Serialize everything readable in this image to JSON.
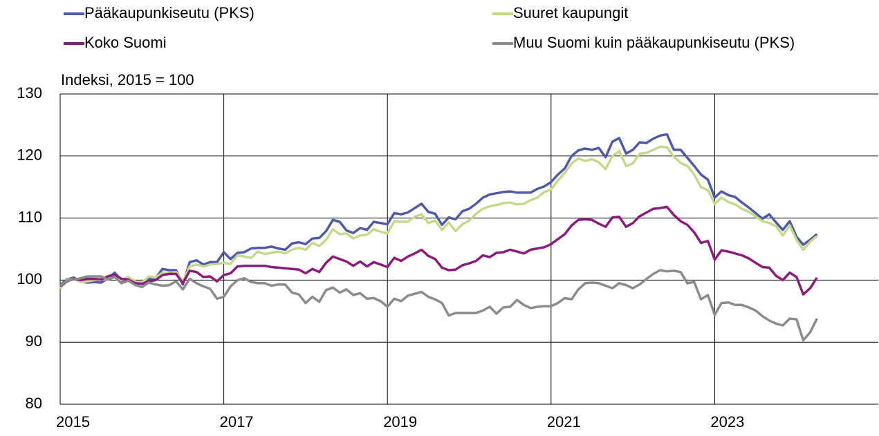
{
  "chart_data": {
    "type": "line",
    "y_label": "Indeksi, 2015 = 100",
    "x": [
      2015,
      2015.083,
      2015.167,
      2015.25,
      2015.333,
      2015.417,
      2015.5,
      2015.583,
      2015.667,
      2015.75,
      2015.833,
      2015.917,
      2016,
      2016.083,
      2016.167,
      2016.25,
      2016.333,
      2016.417,
      2016.5,
      2016.583,
      2016.667,
      2016.75,
      2016.833,
      2016.917,
      2017,
      2017.083,
      2017.167,
      2017.25,
      2017.333,
      2017.417,
      2017.5,
      2017.583,
      2017.667,
      2017.75,
      2017.833,
      2017.917,
      2018,
      2018.083,
      2018.167,
      2018.25,
      2018.333,
      2018.417,
      2018.5,
      2018.583,
      2018.667,
      2018.75,
      2018.833,
      2018.917,
      2019,
      2019.083,
      2019.167,
      2019.25,
      2019.333,
      2019.417,
      2019.5,
      2019.583,
      2019.667,
      2019.75,
      2019.833,
      2019.917,
      2020,
      2020.083,
      2020.167,
      2020.25,
      2020.333,
      2020.417,
      2020.5,
      2020.583,
      2020.667,
      2020.75,
      2020.833,
      2020.917,
      2021,
      2021.083,
      2021.167,
      2021.25,
      2021.333,
      2021.417,
      2021.5,
      2021.583,
      2021.667,
      2021.75,
      2021.833,
      2021.917,
      2022,
      2022.083,
      2022.167,
      2022.25,
      2022.333,
      2022.417,
      2022.5,
      2022.583,
      2022.667,
      2022.75,
      2022.833,
      2022.917,
      2023,
      2023.083,
      2023.167,
      2023.25,
      2023.333,
      2023.417,
      2023.5,
      2023.583,
      2023.667,
      2023.75,
      2023.833,
      2023.917,
      2024,
      2024.083,
      2024.167,
      2024.25
    ],
    "series": [
      {
        "name": "Pääkaupunkiseutu (PKS)",
        "color": "#4f5aa8",
        "values": [
          99.2,
          100.1,
          100.4,
          99.8,
          99.6,
          99.7,
          99.6,
          100.3,
          101.2,
          99.9,
          100.4,
          99.6,
          99.4,
          100.2,
          100.3,
          101.8,
          101.6,
          101.6,
          99.3,
          102.9,
          103.2,
          102.5,
          102.9,
          102.9,
          104.5,
          103.4,
          104.4,
          104.5,
          105.1,
          105.2,
          105.2,
          105.4,
          105.1,
          104.9,
          105.9,
          106.1,
          105.8,
          106.7,
          106.8,
          107.9,
          109.7,
          109.4,
          108.0,
          107.6,
          108.4,
          108.1,
          109.4,
          109.2,
          109.0,
          110.8,
          110.6,
          110.9,
          111.6,
          112.3,
          111.0,
          110.7,
          108.9,
          110.1,
          109.8,
          111.1,
          111.5,
          112.3,
          113.3,
          113.8,
          114.0,
          114.2,
          114.3,
          114.1,
          114.1,
          114.1,
          114.7,
          115.1,
          115.8,
          117.0,
          118.0,
          120.0,
          120.9,
          121.2,
          121.0,
          121.3,
          119.8,
          122.3,
          122.9,
          120.4,
          121.0,
          122.2,
          122.1,
          122.8,
          123.3,
          123.5,
          121.0,
          121.0,
          119.7,
          118.4,
          117.0,
          116.2,
          113.3,
          114.3,
          113.7,
          113.4,
          112.5,
          111.7,
          110.8,
          109.9,
          110.6,
          109.3,
          108.1,
          109.5,
          107.0,
          105.7,
          106.5,
          107.4
        ]
      },
      {
        "name": "Suuret kaupungit",
        "color": "#c5d98a",
        "values": [
          98.6,
          100.0,
          100.2,
          99.7,
          99.8,
          100.0,
          100.1,
          100.2,
          100.9,
          100.0,
          100.5,
          99.8,
          99.6,
          100.6,
          100.4,
          101.2,
          101.2,
          101.3,
          99.8,
          102.2,
          102.5,
          102.2,
          102.5,
          102.6,
          102.8,
          102.6,
          104.0,
          103.8,
          103.6,
          104.6,
          104.2,
          104.4,
          104.6,
          104.3,
          104.9,
          105.2,
          104.9,
          106.0,
          105.5,
          106.5,
          108.2,
          107.4,
          107.5,
          106.7,
          107.2,
          107.3,
          108.2,
          107.8,
          107.5,
          109.5,
          109.4,
          109.4,
          110.2,
          110.6,
          109.2,
          109.6,
          108.1,
          109.3,
          107.9,
          109.0,
          109.6,
          110.7,
          111.5,
          111.9,
          112.1,
          112.4,
          112.5,
          112.2,
          112.3,
          112.9,
          113.3,
          114.2,
          114.6,
          116.0,
          117.3,
          118.8,
          119.6,
          119.2,
          119.5,
          119.0,
          117.9,
          120.0,
          120.8,
          118.4,
          118.8,
          120.4,
          120.5,
          121.0,
          121.5,
          121.4,
          119.9,
          118.9,
          118.4,
          117.0,
          115.0,
          114.5,
          112.3,
          113.3,
          112.6,
          112.2,
          111.5,
          111.0,
          110.3,
          109.5,
          109.2,
          108.7,
          107.2,
          108.8,
          106.5,
          104.9,
          106.2,
          107.1
        ]
      },
      {
        "name": "Koko Suomi",
        "color": "#8b1c7d",
        "values": [
          99.0,
          99.8,
          100.2,
          100.0,
          100.2,
          100.2,
          100.1,
          100.6,
          100.9,
          100.2,
          100.1,
          99.5,
          99.4,
          99.8,
          100.0,
          100.8,
          101.0,
          101.0,
          99.5,
          101.5,
          101.3,
          100.5,
          100.6,
          99.8,
          100.8,
          101.1,
          102.2,
          102.3,
          102.3,
          102.3,
          102.3,
          102.1,
          102.0,
          101.9,
          101.8,
          101.7,
          101.1,
          101.8,
          101.3,
          102.8,
          103.8,
          103.4,
          103.0,
          102.3,
          103.0,
          102.2,
          102.9,
          102.5,
          102.1,
          103.6,
          103.1,
          103.8,
          104.3,
          104.9,
          103.9,
          103.4,
          102.0,
          101.6,
          101.7,
          102.4,
          102.7,
          103.1,
          104.0,
          103.7,
          104.4,
          104.5,
          104.9,
          104.6,
          104.3,
          104.9,
          105.1,
          105.3,
          105.8,
          106.6,
          107.4,
          108.8,
          109.7,
          109.8,
          109.7,
          109.1,
          108.6,
          110.1,
          110.2,
          108.6,
          109.2,
          110.3,
          110.9,
          111.5,
          111.6,
          111.8,
          110.5,
          109.5,
          108.9,
          107.7,
          106.0,
          106.3,
          103.3,
          104.8,
          104.6,
          104.3,
          104.0,
          103.5,
          102.8,
          102.1,
          102.0,
          100.7,
          100.0,
          101.2,
          100.5,
          97.7,
          98.7,
          100.4
        ]
      },
      {
        "name": "Muu Suomi kuin pääkaupunkiseutu (PKS)",
        "color": "#8c8c8c",
        "values": [
          99.1,
          99.9,
          100.1,
          100.3,
          100.6,
          100.6,
          100.6,
          100.1,
          100.5,
          99.5,
          99.9,
          99.2,
          98.9,
          99.6,
          99.3,
          99.1,
          99.2,
          99.8,
          98.5,
          100.2,
          99.5,
          99.0,
          98.6,
          97.0,
          97.3,
          99.0,
          100.0,
          100.3,
          99.7,
          99.5,
          99.5,
          99.1,
          99.3,
          99.3,
          98.0,
          97.7,
          96.3,
          97.3,
          96.5,
          98.4,
          98.8,
          98.0,
          98.5,
          97.6,
          97.9,
          97.0,
          97.1,
          96.6,
          95.7,
          97.0,
          96.6,
          97.5,
          97.8,
          98.1,
          97.3,
          96.9,
          96.3,
          94.3,
          94.7,
          94.7,
          94.7,
          94.7,
          95.1,
          95.7,
          94.6,
          95.6,
          95.7,
          96.8,
          96.0,
          95.5,
          95.7,
          95.8,
          95.8,
          96.3,
          97.1,
          96.9,
          98.5,
          99.5,
          99.6,
          99.5,
          99.1,
          98.7,
          99.5,
          99.2,
          98.7,
          99.3,
          100.2,
          101.0,
          101.6,
          101.4,
          101.5,
          101.3,
          99.5,
          99.7,
          96.9,
          97.6,
          94.4,
          96.3,
          96.4,
          96.0,
          96.0,
          95.6,
          95.1,
          94.2,
          93.5,
          93.0,
          92.7,
          93.8,
          93.7,
          90.3,
          91.6,
          93.8
        ]
      }
    ],
    "xlim": [
      2015,
      2025
    ],
    "xticks": [
      2015,
      2017,
      2019,
      2021,
      2023
    ],
    "ylim": [
      80,
      130
    ],
    "yticks": [
      80,
      90,
      100,
      110,
      120,
      130
    ],
    "grid": true
  }
}
